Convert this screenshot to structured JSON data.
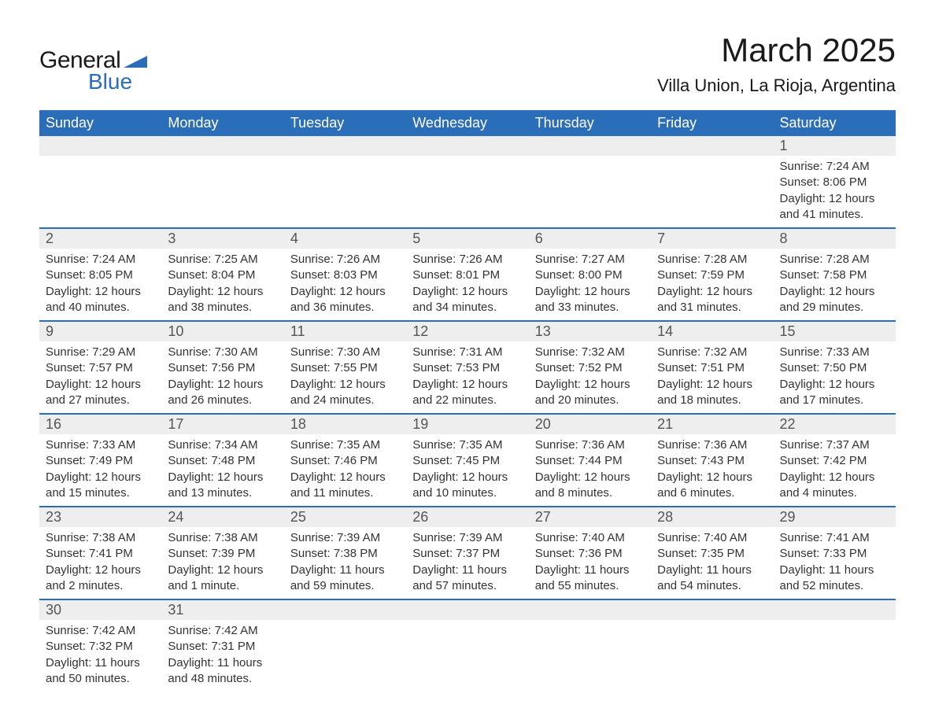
{
  "logo": {
    "text_general": "General",
    "text_blue": "Blue",
    "shape_color": "#2a6db8"
  },
  "header": {
    "month_title": "March 2025",
    "location": "Villa Union, La Rioja, Argentina"
  },
  "colors": {
    "header_bg": "#2a6db8",
    "header_text": "#ffffff",
    "row_stripe": "#eeeeee",
    "row_border": "#2a6db8",
    "text_dark": "#1a1a1a",
    "text_body": "#333333",
    "text_daynum": "#555555",
    "background": "#ffffff"
  },
  "typography": {
    "month_title_fontsize": 42,
    "location_fontsize": 22,
    "day_header_fontsize": 18,
    "day_number_fontsize": 18,
    "cell_fontsize": 15
  },
  "day_headers": [
    "Sunday",
    "Monday",
    "Tuesday",
    "Wednesday",
    "Thursday",
    "Friday",
    "Saturday"
  ],
  "weeks": [
    {
      "numbers": [
        "",
        "",
        "",
        "",
        "",
        "",
        "1"
      ],
      "cells": [
        {
          "sunrise": "",
          "sunset": "",
          "daylight": ""
        },
        {
          "sunrise": "",
          "sunset": "",
          "daylight": ""
        },
        {
          "sunrise": "",
          "sunset": "",
          "daylight": ""
        },
        {
          "sunrise": "",
          "sunset": "",
          "daylight": ""
        },
        {
          "sunrise": "",
          "sunset": "",
          "daylight": ""
        },
        {
          "sunrise": "",
          "sunset": "",
          "daylight": ""
        },
        {
          "sunrise": "Sunrise: 7:24 AM",
          "sunset": "Sunset: 8:06 PM",
          "daylight": "Daylight: 12 hours and 41 minutes."
        }
      ]
    },
    {
      "numbers": [
        "2",
        "3",
        "4",
        "5",
        "6",
        "7",
        "8"
      ],
      "cells": [
        {
          "sunrise": "Sunrise: 7:24 AM",
          "sunset": "Sunset: 8:05 PM",
          "daylight": "Daylight: 12 hours and 40 minutes."
        },
        {
          "sunrise": "Sunrise: 7:25 AM",
          "sunset": "Sunset: 8:04 PM",
          "daylight": "Daylight: 12 hours and 38 minutes."
        },
        {
          "sunrise": "Sunrise: 7:26 AM",
          "sunset": "Sunset: 8:03 PM",
          "daylight": "Daylight: 12 hours and 36 minutes."
        },
        {
          "sunrise": "Sunrise: 7:26 AM",
          "sunset": "Sunset: 8:01 PM",
          "daylight": "Daylight: 12 hours and 34 minutes."
        },
        {
          "sunrise": "Sunrise: 7:27 AM",
          "sunset": "Sunset: 8:00 PM",
          "daylight": "Daylight: 12 hours and 33 minutes."
        },
        {
          "sunrise": "Sunrise: 7:28 AM",
          "sunset": "Sunset: 7:59 PM",
          "daylight": "Daylight: 12 hours and 31 minutes."
        },
        {
          "sunrise": "Sunrise: 7:28 AM",
          "sunset": "Sunset: 7:58 PM",
          "daylight": "Daylight: 12 hours and 29 minutes."
        }
      ]
    },
    {
      "numbers": [
        "9",
        "10",
        "11",
        "12",
        "13",
        "14",
        "15"
      ],
      "cells": [
        {
          "sunrise": "Sunrise: 7:29 AM",
          "sunset": "Sunset: 7:57 PM",
          "daylight": "Daylight: 12 hours and 27 minutes."
        },
        {
          "sunrise": "Sunrise: 7:30 AM",
          "sunset": "Sunset: 7:56 PM",
          "daylight": "Daylight: 12 hours and 26 minutes."
        },
        {
          "sunrise": "Sunrise: 7:30 AM",
          "sunset": "Sunset: 7:55 PM",
          "daylight": "Daylight: 12 hours and 24 minutes."
        },
        {
          "sunrise": "Sunrise: 7:31 AM",
          "sunset": "Sunset: 7:53 PM",
          "daylight": "Daylight: 12 hours and 22 minutes."
        },
        {
          "sunrise": "Sunrise: 7:32 AM",
          "sunset": "Sunset: 7:52 PM",
          "daylight": "Daylight: 12 hours and 20 minutes."
        },
        {
          "sunrise": "Sunrise: 7:32 AM",
          "sunset": "Sunset: 7:51 PM",
          "daylight": "Daylight: 12 hours and 18 minutes."
        },
        {
          "sunrise": "Sunrise: 7:33 AM",
          "sunset": "Sunset: 7:50 PM",
          "daylight": "Daylight: 12 hours and 17 minutes."
        }
      ]
    },
    {
      "numbers": [
        "16",
        "17",
        "18",
        "19",
        "20",
        "21",
        "22"
      ],
      "cells": [
        {
          "sunrise": "Sunrise: 7:33 AM",
          "sunset": "Sunset: 7:49 PM",
          "daylight": "Daylight: 12 hours and 15 minutes."
        },
        {
          "sunrise": "Sunrise: 7:34 AM",
          "sunset": "Sunset: 7:48 PM",
          "daylight": "Daylight: 12 hours and 13 minutes."
        },
        {
          "sunrise": "Sunrise: 7:35 AM",
          "sunset": "Sunset: 7:46 PM",
          "daylight": "Daylight: 12 hours and 11 minutes."
        },
        {
          "sunrise": "Sunrise: 7:35 AM",
          "sunset": "Sunset: 7:45 PM",
          "daylight": "Daylight: 12 hours and 10 minutes."
        },
        {
          "sunrise": "Sunrise: 7:36 AM",
          "sunset": "Sunset: 7:44 PM",
          "daylight": "Daylight: 12 hours and 8 minutes."
        },
        {
          "sunrise": "Sunrise: 7:36 AM",
          "sunset": "Sunset: 7:43 PM",
          "daylight": "Daylight: 12 hours and 6 minutes."
        },
        {
          "sunrise": "Sunrise: 7:37 AM",
          "sunset": "Sunset: 7:42 PM",
          "daylight": "Daylight: 12 hours and 4 minutes."
        }
      ]
    },
    {
      "numbers": [
        "23",
        "24",
        "25",
        "26",
        "27",
        "28",
        "29"
      ],
      "cells": [
        {
          "sunrise": "Sunrise: 7:38 AM",
          "sunset": "Sunset: 7:41 PM",
          "daylight": "Daylight: 12 hours and 2 minutes."
        },
        {
          "sunrise": "Sunrise: 7:38 AM",
          "sunset": "Sunset: 7:39 PM",
          "daylight": "Daylight: 12 hours and 1 minute."
        },
        {
          "sunrise": "Sunrise: 7:39 AM",
          "sunset": "Sunset: 7:38 PM",
          "daylight": "Daylight: 11 hours and 59 minutes."
        },
        {
          "sunrise": "Sunrise: 7:39 AM",
          "sunset": "Sunset: 7:37 PM",
          "daylight": "Daylight: 11 hours and 57 minutes."
        },
        {
          "sunrise": "Sunrise: 7:40 AM",
          "sunset": "Sunset: 7:36 PM",
          "daylight": "Daylight: 11 hours and 55 minutes."
        },
        {
          "sunrise": "Sunrise: 7:40 AM",
          "sunset": "Sunset: 7:35 PM",
          "daylight": "Daylight: 11 hours and 54 minutes."
        },
        {
          "sunrise": "Sunrise: 7:41 AM",
          "sunset": "Sunset: 7:33 PM",
          "daylight": "Daylight: 11 hours and 52 minutes."
        }
      ]
    },
    {
      "numbers": [
        "30",
        "31",
        "",
        "",
        "",
        "",
        ""
      ],
      "cells": [
        {
          "sunrise": "Sunrise: 7:42 AM",
          "sunset": "Sunset: 7:32 PM",
          "daylight": "Daylight: 11 hours and 50 minutes."
        },
        {
          "sunrise": "Sunrise: 7:42 AM",
          "sunset": "Sunset: 7:31 PM",
          "daylight": "Daylight: 11 hours and 48 minutes."
        },
        {
          "sunrise": "",
          "sunset": "",
          "daylight": ""
        },
        {
          "sunrise": "",
          "sunset": "",
          "daylight": ""
        },
        {
          "sunrise": "",
          "sunset": "",
          "daylight": ""
        },
        {
          "sunrise": "",
          "sunset": "",
          "daylight": ""
        },
        {
          "sunrise": "",
          "sunset": "",
          "daylight": ""
        }
      ]
    }
  ]
}
